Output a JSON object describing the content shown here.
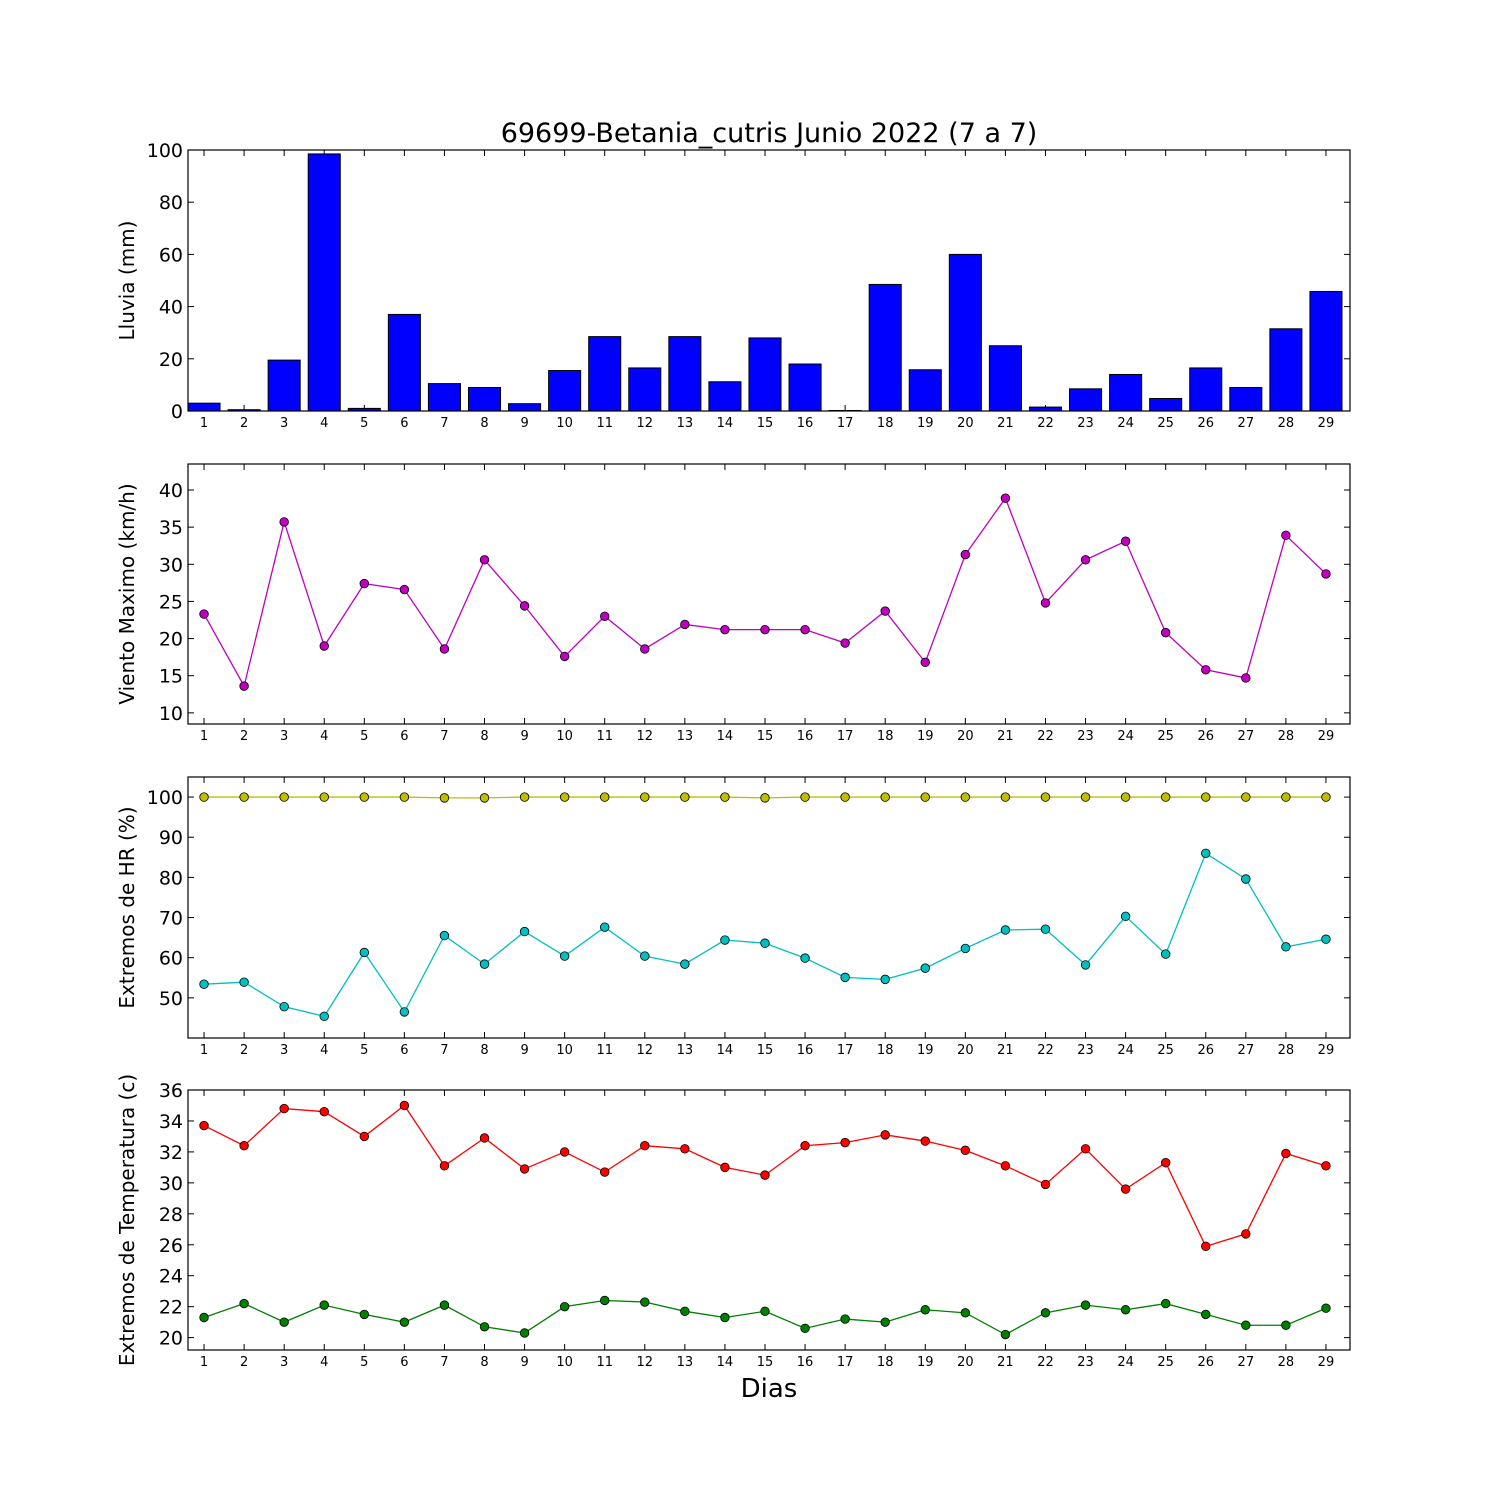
{
  "title": "69699-Betania_cutris Junio 2022  (7 a 7)",
  "xlabel": "Dias",
  "days": [
    1,
    2,
    3,
    4,
    5,
    6,
    7,
    8,
    9,
    10,
    11,
    12,
    13,
    14,
    15,
    16,
    17,
    18,
    19,
    20,
    21,
    22,
    23,
    24,
    25,
    26,
    27,
    28,
    29
  ],
  "chart_data": [
    {
      "type": "bar",
      "ylabel": "Lluvia (mm)",
      "ylim": [
        0,
        100
      ],
      "yticks": [
        0,
        20,
        40,
        60,
        80,
        100
      ],
      "series": [
        {
          "color": "#0000ff",
          "values": [
            3.0,
            0.5,
            19.5,
            98.5,
            1.0,
            37.0,
            10.5,
            9.0,
            2.8,
            15.5,
            28.5,
            16.5,
            28.5,
            11.2,
            28.0,
            18.0,
            0.2,
            48.5,
            15.8,
            60.0,
            25.0,
            1.5,
            8.5,
            14.0,
            4.8,
            16.5,
            9.0,
            31.5,
            45.8
          ]
        }
      ]
    },
    {
      "type": "line",
      "ylabel": "Viento Maximo (km/h)",
      "ylim": [
        8.5,
        43.5
      ],
      "yticks": [
        10,
        15,
        20,
        25,
        30,
        35,
        40
      ],
      "series": [
        {
          "color": "#bf00bf",
          "values": [
            23.3,
            13.6,
            35.7,
            19.0,
            27.4,
            26.6,
            18.6,
            30.6,
            24.4,
            17.6,
            23.0,
            18.6,
            21.9,
            21.2,
            21.2,
            21.2,
            19.4,
            23.7,
            16.8,
            31.3,
            38.9,
            24.8,
            30.6,
            33.1,
            20.8,
            15.8,
            14.7,
            33.9,
            28.7
          ]
        }
      ]
    },
    {
      "type": "line",
      "ylabel": "Extremos de HR (%)",
      "ylim": [
        40,
        105
      ],
      "yticks": [
        50,
        60,
        70,
        80,
        90,
        100
      ],
      "series": [
        {
          "color": "#bfbf00",
          "values": [
            100,
            100,
            100,
            100,
            100,
            100,
            99.8,
            99.8,
            100,
            100,
            100,
            100,
            100,
            100,
            99.8,
            100,
            100,
            100,
            100,
            100,
            100,
            100,
            100,
            100,
            100,
            100,
            100,
            100,
            100
          ]
        },
        {
          "color": "#00bfbf",
          "values": [
            53.4,
            53.9,
            47.8,
            45.4,
            61.3,
            46.5,
            65.5,
            58.4,
            66.5,
            60.4,
            67.6,
            60.4,
            58.4,
            64.4,
            63.6,
            59.9,
            55.1,
            54.6,
            57.4,
            62.3,
            66.9,
            67.1,
            58.2,
            70.3,
            60.9,
            86.0,
            79.6,
            62.7,
            64.6
          ]
        }
      ]
    },
    {
      "type": "line",
      "ylabel": "Extremos de Temperatura (c)",
      "ylim": [
        19.2,
        36
      ],
      "yticks": [
        20,
        22,
        24,
        26,
        28,
        30,
        32,
        34,
        36
      ],
      "series": [
        {
          "color": "#ff0000",
          "values": [
            33.7,
            32.4,
            34.8,
            34.6,
            33.0,
            35.0,
            31.1,
            32.9,
            30.9,
            32.0,
            30.7,
            32.4,
            32.2,
            31.0,
            30.5,
            32.4,
            32.6,
            33.1,
            32.7,
            32.1,
            31.1,
            29.9,
            32.2,
            29.6,
            31.3,
            25.9,
            26.7,
            31.9,
            31.1
          ]
        },
        {
          "color": "#007f00",
          "values": [
            21.3,
            22.2,
            21.0,
            22.1,
            21.5,
            21.0,
            22.1,
            20.7,
            20.3,
            22.0,
            22.4,
            22.3,
            21.7,
            21.3,
            21.7,
            20.6,
            21.2,
            21.0,
            21.8,
            21.6,
            20.2,
            21.6,
            22.1,
            21.8,
            22.2,
            21.5,
            20.8,
            20.8,
            21.9
          ]
        }
      ]
    }
  ]
}
